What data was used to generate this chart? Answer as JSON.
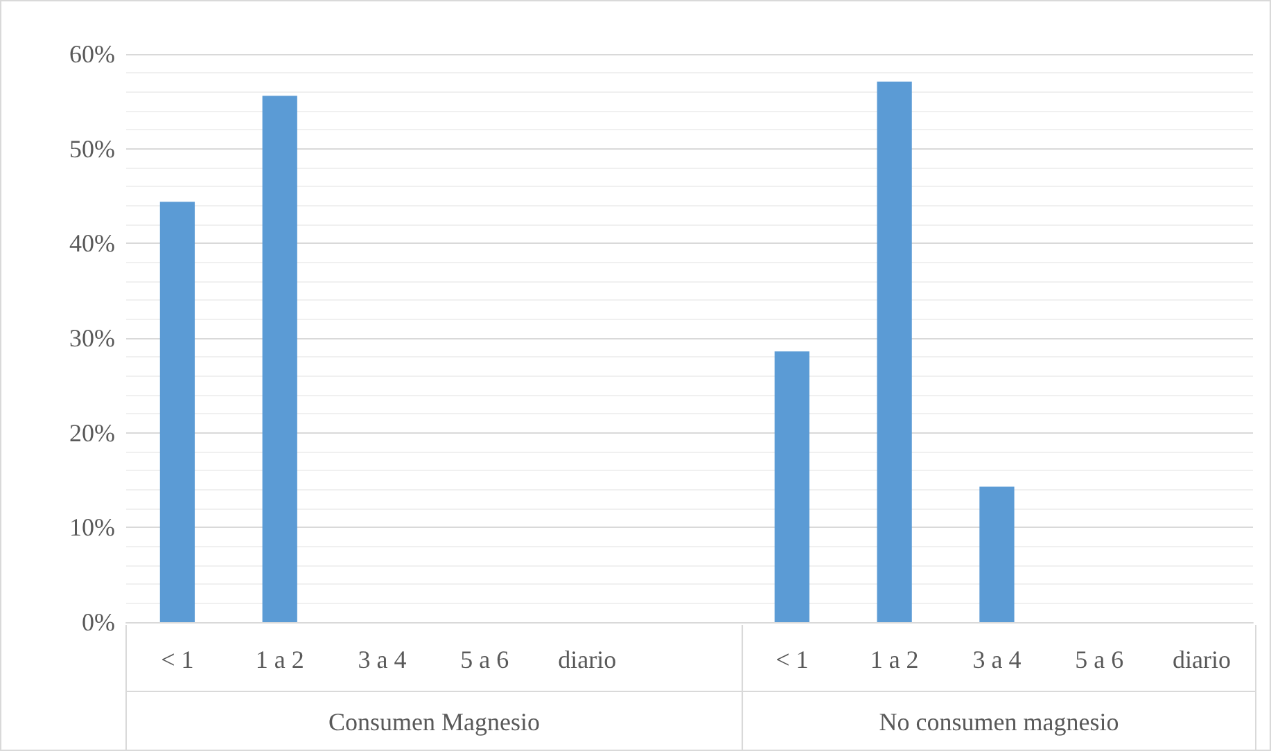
{
  "chart_data": {
    "type": "bar",
    "categories": [
      "< 1",
      "1 a 2",
      "3 a 4",
      "5 a 6",
      "diario",
      null,
      "< 1",
      "1 a 2",
      "3 a 4",
      "5 a 6",
      "diario"
    ],
    "values": [
      44.4,
      55.6,
      0,
      0,
      0,
      null,
      28.6,
      57.1,
      14.3,
      0,
      0
    ],
    "color": "#5b9bd5",
    "ylim": [
      0,
      60
    ],
    "yticks": [
      {
        "value": 0,
        "label": "0%"
      },
      {
        "value": 10,
        "label": "10%"
      },
      {
        "value": 20,
        "label": "20%"
      },
      {
        "value": 30,
        "label": "30%"
      },
      {
        "value": 40,
        "label": "40%"
      },
      {
        "value": 50,
        "label": "50%"
      },
      {
        "value": 60,
        "label": "60%"
      }
    ],
    "annotations": [
      "Consumen Magnesio",
      "No consumen magnesio"
    ],
    "grid": true
  }
}
